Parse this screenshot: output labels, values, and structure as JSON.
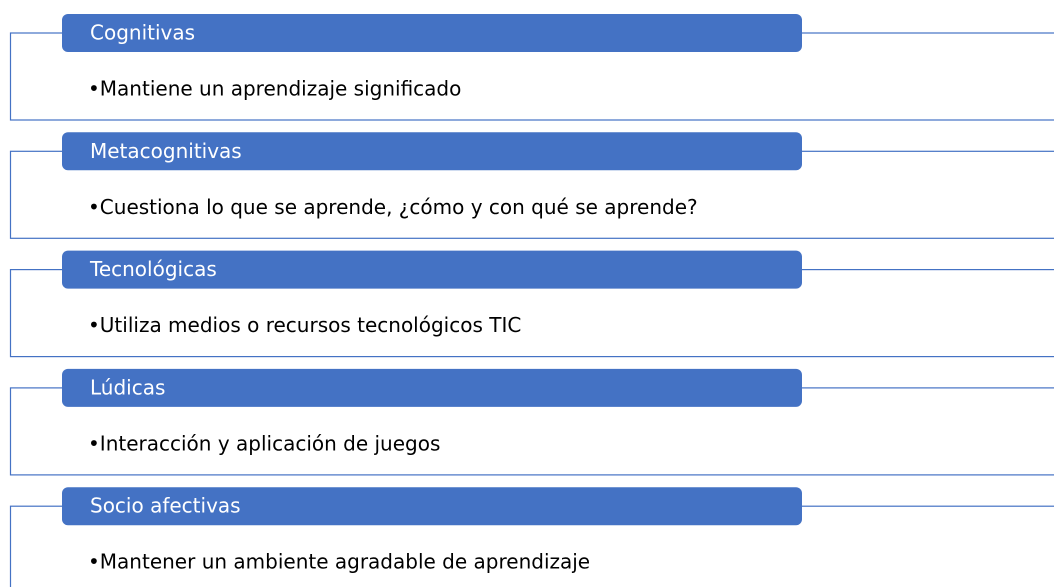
{
  "items": [
    {
      "title": "Cognitivas",
      "text": "•Mantiene un aprendizaje significado"
    },
    {
      "title": "Metacognitivas",
      "text": "•Cuestiona lo que se aprende, ¿cómo y con qué se aprende?"
    },
    {
      "title": "Tecnológicas",
      "text": "•Utiliza medios o recursos tecnológicos TIC"
    },
    {
      "title": "Lúdicas",
      "text": "•Interacción y aplicación de juegos"
    },
    {
      "title": "Socio afectivas",
      "text": "•Mantener un ambiente agradable de aprendizaje"
    }
  ]
}
